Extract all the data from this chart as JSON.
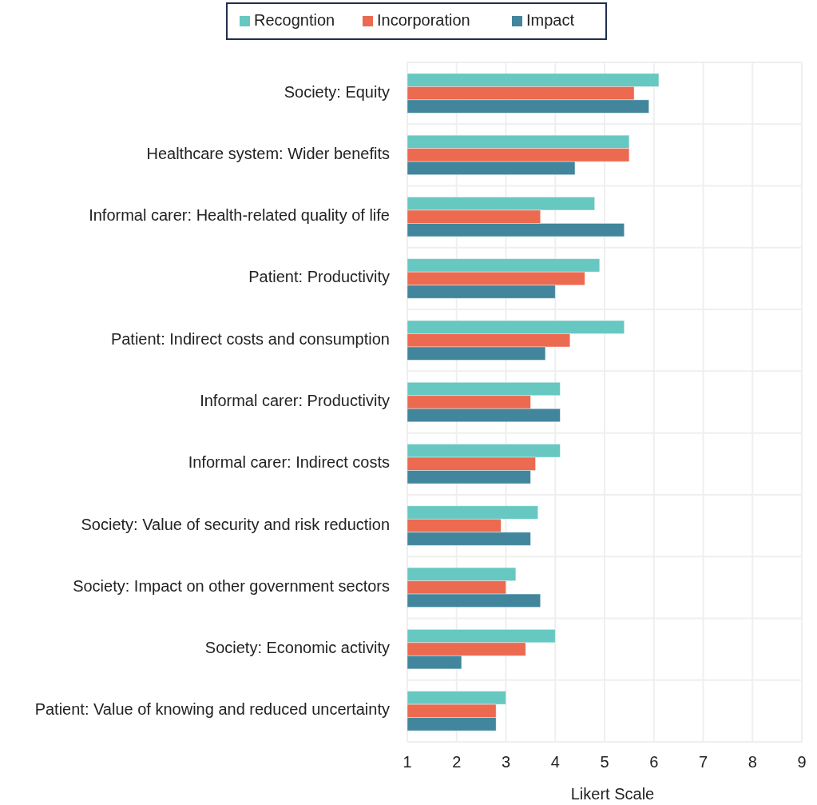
{
  "chart_data": {
    "type": "bar",
    "orientation": "horizontal",
    "xlabel": "Likert Scale",
    "categories": [
      "Society: Equity",
      "Healthcare system: Wider benefits",
      "Informal carer: Health-related quality of life",
      "Patient: Productivity",
      "Patient: Indirect costs and consumption",
      "Informal carer: Productivity",
      "Informal carer: Indirect costs",
      "Society: Value of security and risk reduction",
      "Society: Impact on other government sectors",
      "Society: Economic activity",
      "Patient: Value of knowing and reduced uncertainty"
    ],
    "series": [
      {
        "name": "Recogntion",
        "color": "#66c8c1",
        "values": [
          6.1,
          5.5,
          4.8,
          4.9,
          5.4,
          4.1,
          4.1,
          3.65,
          3.2,
          4.0,
          3.0
        ]
      },
      {
        "name": "Incorporation",
        "color": "#ec6a50",
        "values": [
          5.6,
          5.5,
          3.7,
          4.6,
          4.3,
          3.5,
          3.6,
          2.9,
          3.0,
          3.4,
          2.8
        ]
      },
      {
        "name": "Impact",
        "color": "#41869c",
        "values": [
          5.9,
          4.4,
          5.4,
          4.0,
          3.8,
          4.1,
          3.5,
          3.5,
          3.7,
          2.1,
          2.8
        ]
      }
    ],
    "xlim": [
      1,
      9
    ],
    "xticks": [
      1,
      2,
      3,
      4,
      5,
      6,
      7,
      8,
      9
    ],
    "grid": true,
    "legend": "top"
  }
}
